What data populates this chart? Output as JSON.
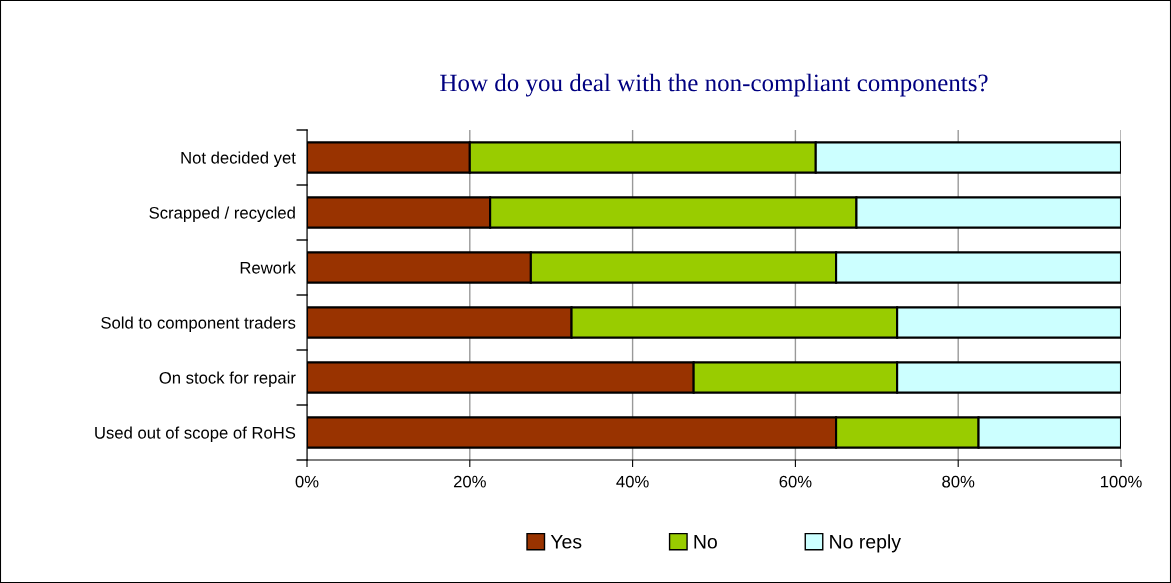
{
  "chart_data": {
    "type": "bar",
    "orientation": "horizontal",
    "stacked": true,
    "title": "How do you deal with the non-compliant components?",
    "categories": [
      "Not decided yet",
      "Scrapped / recycled",
      "Rework",
      "Sold to component traders",
      "On stock for repair",
      "Used out of scope of RoHS"
    ],
    "series": [
      {
        "name": "Yes",
        "color": "#993300",
        "values": [
          20,
          22.5,
          27.5,
          32.5,
          47.5,
          65
        ]
      },
      {
        "name": "No",
        "color": "#99cc00",
        "values": [
          42.5,
          45,
          37.5,
          40,
          25,
          17.5
        ]
      },
      {
        "name": "No reply",
        "color": "#ccffff",
        "values": [
          37.5,
          32.5,
          35,
          27.5,
          27.5,
          17.5
        ]
      }
    ],
    "xlim": [
      0,
      100
    ],
    "xticks": [
      {
        "value": 0,
        "label": "0%"
      },
      {
        "value": 20,
        "label": "20%"
      },
      {
        "value": 40,
        "label": "40%"
      },
      {
        "value": 60,
        "label": "60%"
      },
      {
        "value": 80,
        "label": "80%"
      },
      {
        "value": 100,
        "label": "100%"
      }
    ],
    "grid": "x",
    "legend": "bottom"
  }
}
